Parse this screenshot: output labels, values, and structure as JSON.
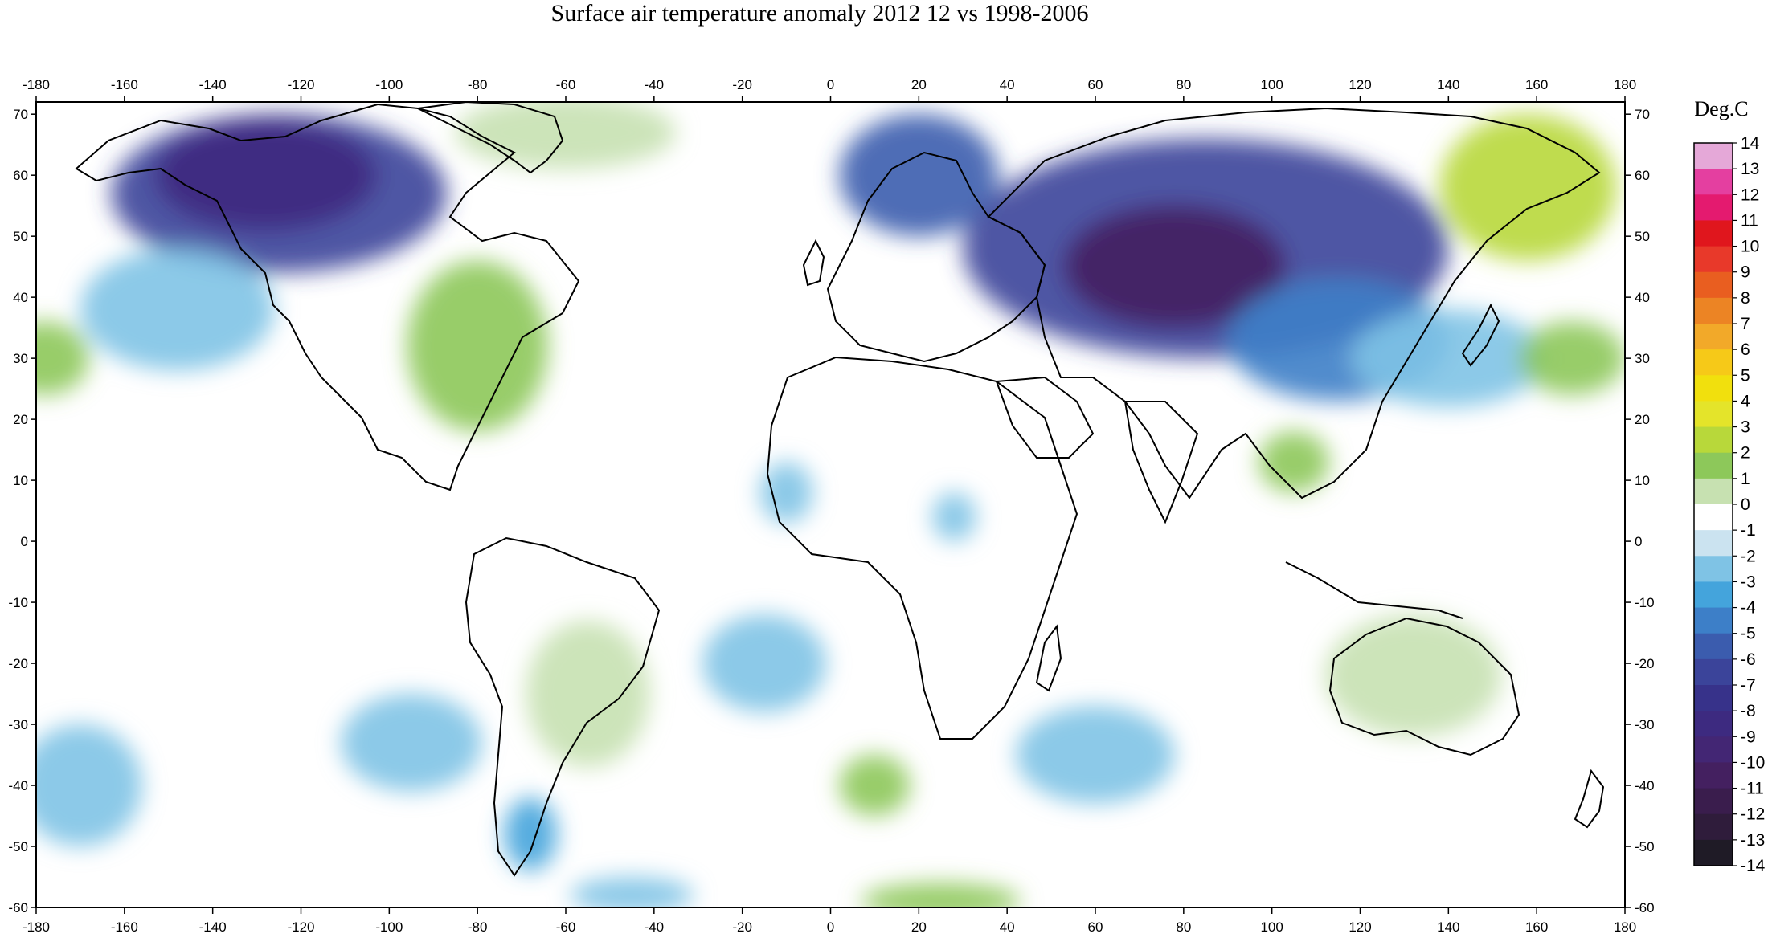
{
  "title": "Surface air temperature anomaly 2012 12 vs 1998-2006",
  "colorbar": {
    "unit": "Deg.C",
    "labels": [
      "14",
      "13",
      "12",
      "11",
      "10",
      "9",
      "8",
      "7",
      "6",
      "5",
      "4",
      "3",
      "2",
      "1",
      "0",
      "-1",
      "-2",
      "-3",
      "-4",
      "-5",
      "-6",
      "-7",
      "-8",
      "-9",
      "-10",
      "-11",
      "-12",
      "-13",
      "-14"
    ],
    "colors": [
      "#e5a8d8",
      "#e43fa0",
      "#e41a6f",
      "#e0161d",
      "#e8392a",
      "#e95e20",
      "#ec8424",
      "#f2a929",
      "#f6c918",
      "#f1e00d",
      "#e4e42a",
      "#b8d83a",
      "#8dc85a",
      "#c7e1b1",
      "#ffffff",
      "#cbe3f0",
      "#7fc3e5",
      "#44a4dc",
      "#3d7fc8",
      "#3b5cae",
      "#3b449a",
      "#37328a",
      "#3d2a80",
      "#432674",
      "#442060",
      "#3a1d4d",
      "#2f1c3b",
      "#1f1b26",
      "#111111"
    ]
  },
  "axes": {
    "lon_labels": [
      "-180",
      "-160",
      "-140",
      "-120",
      "-100",
      "-80",
      "-60",
      "-40",
      "-20",
      "0",
      "20",
      "40",
      "60",
      "80",
      "100",
      "120",
      "140",
      "160",
      "180"
    ],
    "lat_labels": [
      "70",
      "60",
      "50",
      "40",
      "30",
      "20",
      "10",
      "0",
      "-10",
      "-20",
      "-30",
      "-40",
      "-50",
      "-60"
    ],
    "lon_range": [
      -180,
      180
    ],
    "lat_range": [
      -60,
      72
    ]
  },
  "anomaly_regions": [
    {
      "name": "alaska-canada-cold",
      "lon": -125,
      "lat": 57,
      "rx": 38,
      "ry": 13,
      "value": -6
    },
    {
      "name": "alaska-cold-core",
      "lon": -128,
      "lat": 60,
      "rx": 25,
      "ry": 9,
      "value": -8
    },
    {
      "name": "ne-pacific-cold",
      "lon": -148,
      "lat": 38,
      "rx": 22,
      "ry": 10,
      "value": -2
    },
    {
      "name": "central-asia-cold",
      "lon": 85,
      "lat": 48,
      "rx": 55,
      "ry": 18,
      "value": -6
    },
    {
      "name": "central-asia-cold-core",
      "lon": 78,
      "lat": 45,
      "rx": 25,
      "ry": 10,
      "value": -10
    },
    {
      "name": "scandinavia-cold",
      "lon": 20,
      "lat": 60,
      "rx": 18,
      "ry": 10,
      "value": -5
    },
    {
      "name": "east-asia-cold",
      "lon": 115,
      "lat": 33,
      "rx": 25,
      "ry": 10,
      "value": -4
    },
    {
      "name": "nw-pacific-cold",
      "lon": 140,
      "lat": 30,
      "rx": 22,
      "ry": 8,
      "value": -2
    },
    {
      "name": "eastern-us-warm",
      "lon": -80,
      "lat": 32,
      "rx": 16,
      "ry": 14,
      "value": 2
    },
    {
      "name": "greenland-warm",
      "lon": -60,
      "lat": 67,
      "rx": 25,
      "ry": 6,
      "value": 1
    },
    {
      "name": "ne-siberia-warm",
      "lon": 158,
      "lat": 58,
      "rx": 20,
      "ry": 12,
      "value": 3
    },
    {
      "name": "central-pacific-warm",
      "lon": -178,
      "lat": 30,
      "rx": 10,
      "ry": 6,
      "value": 2
    },
    {
      "name": "w-pacific-warm",
      "lon": 168,
      "lat": 30,
      "rx": 12,
      "ry": 6,
      "value": 2
    },
    {
      "name": "australia-warm",
      "lon": 132,
      "lat": -22,
      "rx": 20,
      "ry": 10,
      "value": 1
    },
    {
      "name": "south-america-warm",
      "lon": -55,
      "lat": -25,
      "rx": 14,
      "ry": 12,
      "value": 1
    },
    {
      "name": "south-atlantic-warm",
      "lon": 10,
      "lat": -40,
      "rx": 8,
      "ry": 5,
      "value": 2
    },
    {
      "name": "southern-ocean-warm",
      "lon": 25,
      "lat": -59,
      "rx": 18,
      "ry": 3,
      "value": 2
    },
    {
      "name": "se-asia-warm",
      "lon": 105,
      "lat": 13,
      "rx": 8,
      "ry": 5,
      "value": 2
    },
    {
      "name": "south-atlantic-cold",
      "lon": -15,
      "lat": -20,
      "rx": 14,
      "ry": 8,
      "value": -2
    },
    {
      "name": "south-pacific-cold",
      "lon": -95,
      "lat": -33,
      "rx": 16,
      "ry": 8,
      "value": -2
    },
    {
      "name": "indian-ocean-cold",
      "lon": 60,
      "lat": -35,
      "rx": 18,
      "ry": 8,
      "value": -2
    },
    {
      "name": "s-pacific-west-cold",
      "lon": -170,
      "lat": -40,
      "rx": 14,
      "ry": 10,
      "value": -2
    },
    {
      "name": "patagonia-cold",
      "lon": -68,
      "lat": -48,
      "rx": 6,
      "ry": 6,
      "value": -3
    },
    {
      "name": "drake-cold",
      "lon": -45,
      "lat": -58,
      "rx": 14,
      "ry": 3,
      "value": -2
    },
    {
      "name": "w-africa-cold",
      "lon": -10,
      "lat": 8,
      "rx": 6,
      "ry": 5,
      "value": -2
    },
    {
      "name": "e-africa-cold",
      "lon": 28,
      "lat": 4,
      "rx": 5,
      "ry": 4,
      "value": -2
    }
  ]
}
